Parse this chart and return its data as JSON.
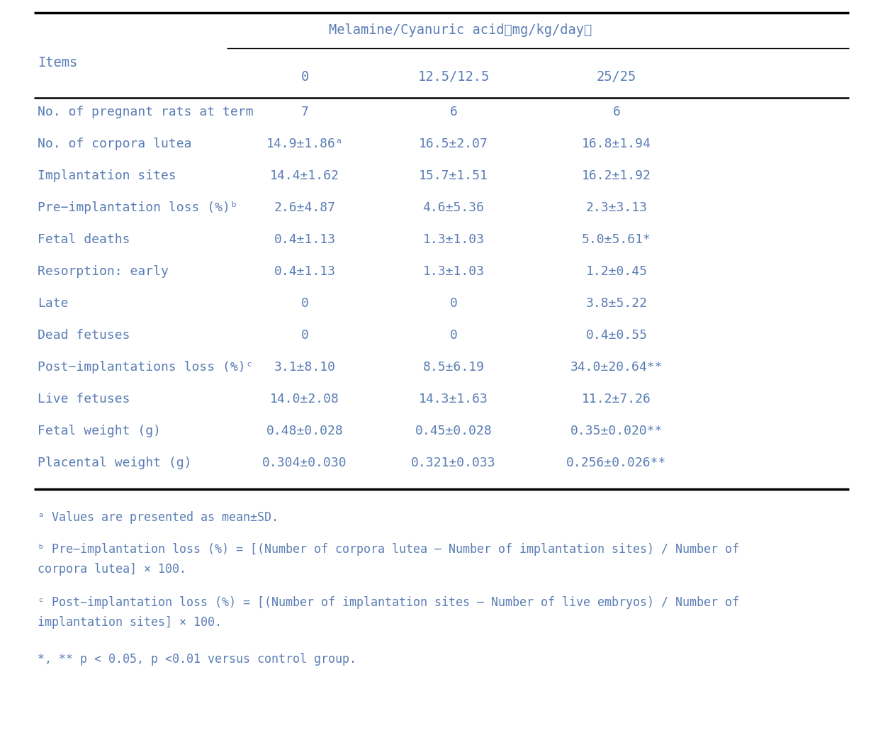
{
  "bg_color": "#ffffff",
  "text_color": "#5a7db5",
  "border_color": "#000000",
  "figsize": [
    12.46,
    10.58
  ],
  "dpi": 100,
  "header_main": "Melamine/Cyanuric acid（mg/kg/day）",
  "col_headers": [
    "0",
    "12.5/12.5",
    "25/25"
  ],
  "items_label": "Items",
  "rows": [
    [
      "No. of pregnant rats at term",
      "7",
      "6",
      "6"
    ],
    [
      "No. of corpora lutea",
      "14.9±1.86ᵃ",
      "16.5±2.07",
      "16.8±1.94"
    ],
    [
      "Implantation sites",
      "14.4±1.62",
      "15.7±1.51",
      "16.2±1.92"
    ],
    [
      "Pre−implantation loss (%)ᵇ",
      "2.6±4.87",
      "4.6±5.36",
      "2.3±3.13"
    ],
    [
      "Fetal deaths",
      "0.4±1.13",
      "1.3±1.03",
      "5.0±5.61*"
    ],
    [
      "Resorption: early",
      "0.4±1.13",
      "1.3±1.03",
      "1.2±0.45"
    ],
    [
      "Late",
      "0",
      "0",
      "3.8±5.22"
    ],
    [
      "Dead fetuses",
      "0",
      "0",
      "0.4±0.55"
    ],
    [
      "Post−implantations loss (%)ᶜ",
      "3.1±8.10",
      "8.5±6.19",
      "34.0±20.64**"
    ],
    [
      "Live fetuses",
      "14.0±2.08",
      "14.3±1.63",
      "11.2±7.26"
    ],
    [
      "Fetal weight (g)",
      "0.48±0.028",
      "0.45±0.028",
      "0.35±0.020**"
    ],
    [
      "Placental weight (g)",
      "0.304±0.030",
      "0.321±0.033",
      "0.256±0.026**"
    ]
  ],
  "footnote1": "ᵃ Values are presented as mean±SD.",
  "footnote2a": "ᵇ Pre−implantation loss (%) = [(Number of corpora lutea – Number of implantation sites) / Number of",
  "footnote2b": "corpora lutea] × 100.",
  "footnote3a": "ᶜ Post−implantation loss (%) = [(Number of implantation sites – Number of live embryos) / Number of",
  "footnote3b": "implantation sites] × 100.",
  "footnote4": "*, ** p < 0.05, p <0.01 versus control group."
}
